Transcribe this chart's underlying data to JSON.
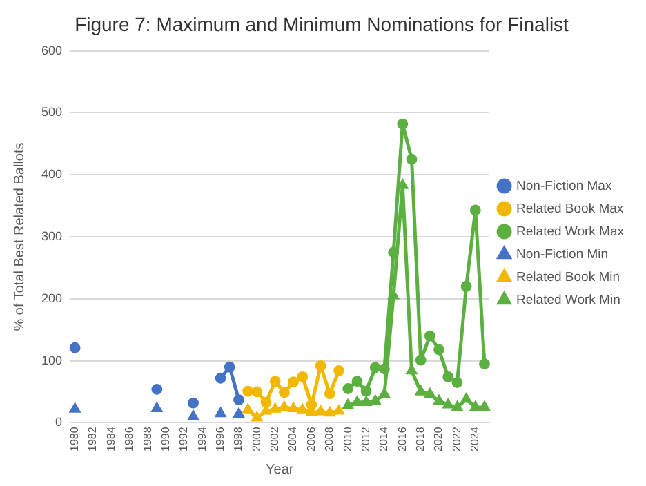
{
  "chart_data": {
    "type": "line",
    "title": "Figure 7: Maximum and Minimum Nominations for Finalist",
    "xlabel": "Year",
    "ylabel": "% of Total Best Related Ballots",
    "categories": [
      "1980",
      null,
      "1982",
      null,
      "1984",
      null,
      "1986",
      null,
      "1988",
      null,
      "1990",
      null,
      "1992",
      null,
      "1994",
      null,
      "1996",
      null,
      "1998",
      null,
      "2000",
      null,
      "2002",
      null,
      "2004",
      null,
      "2006",
      null,
      "2008",
      null,
      "2010",
      null,
      "2012",
      null,
      "2014",
      null,
      "2016",
      null,
      "2018",
      null,
      "2020",
      null,
      "2022",
      null,
      "2024",
      null
    ],
    "ylim": [
      0,
      600
    ],
    "yticks": [
      0,
      100,
      200,
      300,
      400,
      500,
      600
    ],
    "grid": "y",
    "legend": "right",
    "series": [
      {
        "name": "Non-Fiction Max",
        "color": "#4472c4",
        "marker": "circle",
        "values": [
          121,
          null,
          null,
          null,
          null,
          null,
          null,
          null,
          null,
          54,
          null,
          null,
          null,
          32,
          null,
          null,
          72,
          90,
          37,
          null,
          null,
          null,
          null,
          null,
          null,
          null,
          null,
          null,
          null,
          null,
          null,
          null,
          null,
          null,
          null,
          null,
          null,
          null,
          null,
          null,
          null,
          null,
          null,
          null,
          null,
          null
        ]
      },
      {
        "name": "Related Book Max",
        "color": "#f2b800",
        "marker": "circle",
        "values": [
          null,
          null,
          null,
          null,
          null,
          null,
          null,
          null,
          null,
          null,
          null,
          null,
          null,
          null,
          null,
          null,
          null,
          null,
          null,
          51,
          50,
          33,
          67,
          49,
          66,
          74,
          29,
          92,
          47,
          84,
          null,
          null,
          null,
          null,
          null,
          null,
          null,
          null,
          null,
          null,
          null,
          null,
          null,
          null,
          null,
          null
        ]
      },
      {
        "name": "Related Work Max",
        "color": "#5cb040",
        "marker": "circle",
        "values": [
          null,
          null,
          null,
          null,
          null,
          null,
          null,
          null,
          null,
          null,
          null,
          null,
          null,
          null,
          null,
          null,
          null,
          null,
          null,
          null,
          null,
          null,
          null,
          null,
          null,
          null,
          null,
          null,
          null,
          null,
          55,
          67,
          51,
          89,
          87,
          275,
          482,
          425,
          101,
          140,
          118,
          74,
          65,
          220,
          343,
          95
        ]
      },
      {
        "name": "Non-Fiction Min",
        "type": "scatter",
        "color": "#4472c4",
        "marker": "triangle",
        "values": [
          22,
          null,
          null,
          null,
          null,
          null,
          null,
          null,
          null,
          23,
          null,
          null,
          null,
          10,
          null,
          null,
          15,
          null,
          14,
          null,
          null,
          null,
          null,
          null,
          null,
          null,
          null,
          null,
          null,
          null,
          null,
          null,
          null,
          null,
          null,
          null,
          null,
          null,
          null,
          null,
          null,
          null,
          null,
          null,
          null,
          null
        ]
      },
      {
        "name": "Related Book Min",
        "color": "#f2b800",
        "marker": "triangle",
        "values": [
          null,
          null,
          null,
          null,
          null,
          null,
          null,
          null,
          null,
          null,
          null,
          null,
          null,
          null,
          null,
          null,
          null,
          null,
          null,
          21,
          8,
          19,
          22,
          25,
          23,
          21,
          17,
          18,
          16,
          19,
          null,
          null,
          null,
          null,
          null,
          null,
          null,
          null,
          null,
          null,
          null,
          null,
          null,
          null,
          null,
          null
        ]
      },
      {
        "name": "Related Work Min",
        "color": "#5cb040",
        "marker": "triangle",
        "values": [
          null,
          null,
          null,
          null,
          null,
          null,
          null,
          null,
          null,
          null,
          null,
          null,
          null,
          null,
          null,
          null,
          null,
          null,
          null,
          null,
          null,
          null,
          null,
          null,
          null,
          null,
          null,
          null,
          null,
          null,
          28,
          33,
          33,
          35,
          46,
          205,
          383,
          84,
          50,
          46,
          35,
          29,
          25,
          38,
          25,
          25
        ]
      }
    ]
  }
}
